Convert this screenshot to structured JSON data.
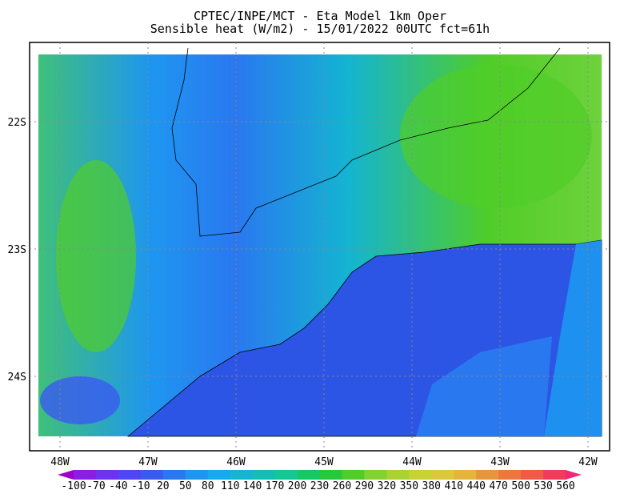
{
  "header": {
    "title": "CPTEC/INPE/MCT -  Eta Model 1km Oper",
    "subtitle": "Sensible heat (W/m2) - 15/01/2022 00UTC fct=61h"
  },
  "map": {
    "lat_labels": [
      "22S",
      "23S",
      "24S"
    ],
    "lon_labels": [
      "48W",
      "47W",
      "46W",
      "45W",
      "44W",
      "43W",
      "42W"
    ]
  },
  "colorbar": {
    "labels": [
      -100,
      -70,
      -40,
      -10,
      20,
      50,
      80,
      110,
      140,
      170,
      200,
      230,
      260,
      290,
      320,
      350,
      380,
      410,
      440,
      470,
      500,
      530,
      560
    ],
    "colors": [
      "#a000c8",
      "#8a1ee6",
      "#6e32f0",
      "#5046f5",
      "#3a5af0",
      "#2a78f0",
      "#1e96f0",
      "#14aaf0",
      "#14b4d2",
      "#14beb4",
      "#14c896",
      "#14c864",
      "#28c83c",
      "#50cd28",
      "#82d232",
      "#aad232",
      "#c8d232",
      "#dcc83c",
      "#e6b43c",
      "#e6963c",
      "#ec783c",
      "#f05a46",
      "#f03c5a",
      "#f02878"
    ]
  }
}
